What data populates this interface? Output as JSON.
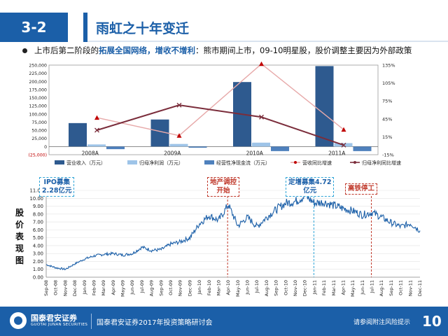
{
  "header": {
    "section": "3-2",
    "title": "雨虹之十年变迁"
  },
  "bullet": {
    "text_1": "上市后第二阶段的",
    "highlight": "拓展全国网络，增收不增利",
    "text_2": "：熊市期间上市，09-10明星股，股价调整主要因为外部政策"
  },
  "colors": {
    "brand_blue": "#1b5fa8",
    "revenue": "#2e5a8f",
    "net_profit": "#9ec4e8",
    "cashflow": "#4f81bd",
    "revenue_growth": "#e7a9a9",
    "profit_growth": "#7b2d3b"
  },
  "chart_data": [
    {
      "type": "bar",
      "categories": [
        "2008A",
        "2009A",
        "2010A",
        "2011A"
      ],
      "ylim": [
        -25000,
        250000
      ],
      "y_ticks": [
        "(25,000)",
        "0",
        "25,000",
        "50,000",
        "75,000",
        "100,000",
        "125,000",
        "150,000",
        "175,000",
        "200,000",
        "225,000",
        "250,000"
      ],
      "y2lim": [
        -15,
        135
      ],
      "y2_ticks": [
        "-15%",
        "15%",
        "45%",
        "75%",
        "105%",
        "135%"
      ],
      "series": [
        {
          "name": "营业收入（万元）",
          "axis": "left",
          "kind": "bar",
          "values": [
            72000,
            83000,
            198000,
            247000
          ]
        },
        {
          "name": "归母净利润（万元）",
          "axis": "left",
          "kind": "bar",
          "values": [
            6500,
            8000,
            12000,
            10500
          ]
        },
        {
          "name": "经营性净现金流（万元）",
          "axis": "left",
          "kind": "bar",
          "values": [
            -8000,
            -3500,
            -14000,
            -14000
          ]
        },
        {
          "name": "营收同比增速",
          "axis": "right",
          "kind": "line",
          "values": [
            47,
            17,
            137,
            27
          ]
        },
        {
          "name": "归母净利同比增速",
          "axis": "right",
          "kind": "line",
          "values": [
            26,
            68,
            48,
            1
          ]
        }
      ]
    },
    {
      "type": "line",
      "y_label": "股价表现图",
      "ylim": [
        0,
        11
      ],
      "y_ticks": [
        "0.00",
        "1.00",
        "2.00",
        "3.00",
        "4.00",
        "5.00",
        "6.00",
        "7.00",
        "8.00",
        "9.00",
        "10.00",
        "11.00"
      ],
      "x_ticks": [
        "Sep-08",
        "Oct-08",
        "Nov-08",
        "Dec-08",
        "Jan-09",
        "Feb-09",
        "Mar-09",
        "Apr-09",
        "May-09",
        "Jun-09",
        "Jul-09",
        "Aug-09",
        "Sep-09",
        "Oct-09",
        "Nov-09",
        "Dec-09",
        "Jan-10",
        "Feb-10",
        "Mar-10",
        "Apr-10",
        "May-10",
        "Jun-10",
        "Jul-10",
        "Aug-10",
        "Sep-10",
        "Oct-10",
        "Nov-10",
        "Dec-10",
        "Jan-11",
        "Feb-11",
        "Mar-11",
        "Apr-11",
        "May-11",
        "Jun-11",
        "Jul-11",
        "Aug-11",
        "Sep-11",
        "Oct-11",
        "Nov-11",
        "Dec-11"
      ],
      "values": [
        1.6,
        1.2,
        1.0,
        1.7,
        2.3,
        2.7,
        2.9,
        3.0,
        2.8,
        3.0,
        3.8,
        3.4,
        3.5,
        4.2,
        4.5,
        5.0,
        6.8,
        7.8,
        7.2,
        9.2,
        6.5,
        7.6,
        6.4,
        7.6,
        8.6,
        9.4,
        9.6,
        10.3,
        9.4,
        9.5,
        9.1,
        8.7,
        8.4,
        7.9,
        8.2,
        7.6,
        6.9,
        6.4,
        6.8,
        5.9
      ],
      "annotations": [
        {
          "text_1": "IPO募集",
          "text_2": "2.28亿元",
          "style": "blue"
        },
        {
          "text_1": "地产调控",
          "text_2": "开始",
          "style": "red",
          "at": "Apr-10"
        },
        {
          "text_1": "定增募集4.72",
          "text_2": "亿元",
          "style": "blue",
          "at": "Jan-11"
        },
        {
          "text_1": "高铁停工",
          "text_2": "",
          "style": "red",
          "at": "Jul-11"
        }
      ]
    }
  ],
  "footer": {
    "logo_cn": "国泰君安证券",
    "logo_en": "GUOTAI JUNAN SECURITIES",
    "event": "国泰君安证券2017年投资策略研讨会",
    "risk": "请参阅附注风险提示",
    "page": "10"
  }
}
